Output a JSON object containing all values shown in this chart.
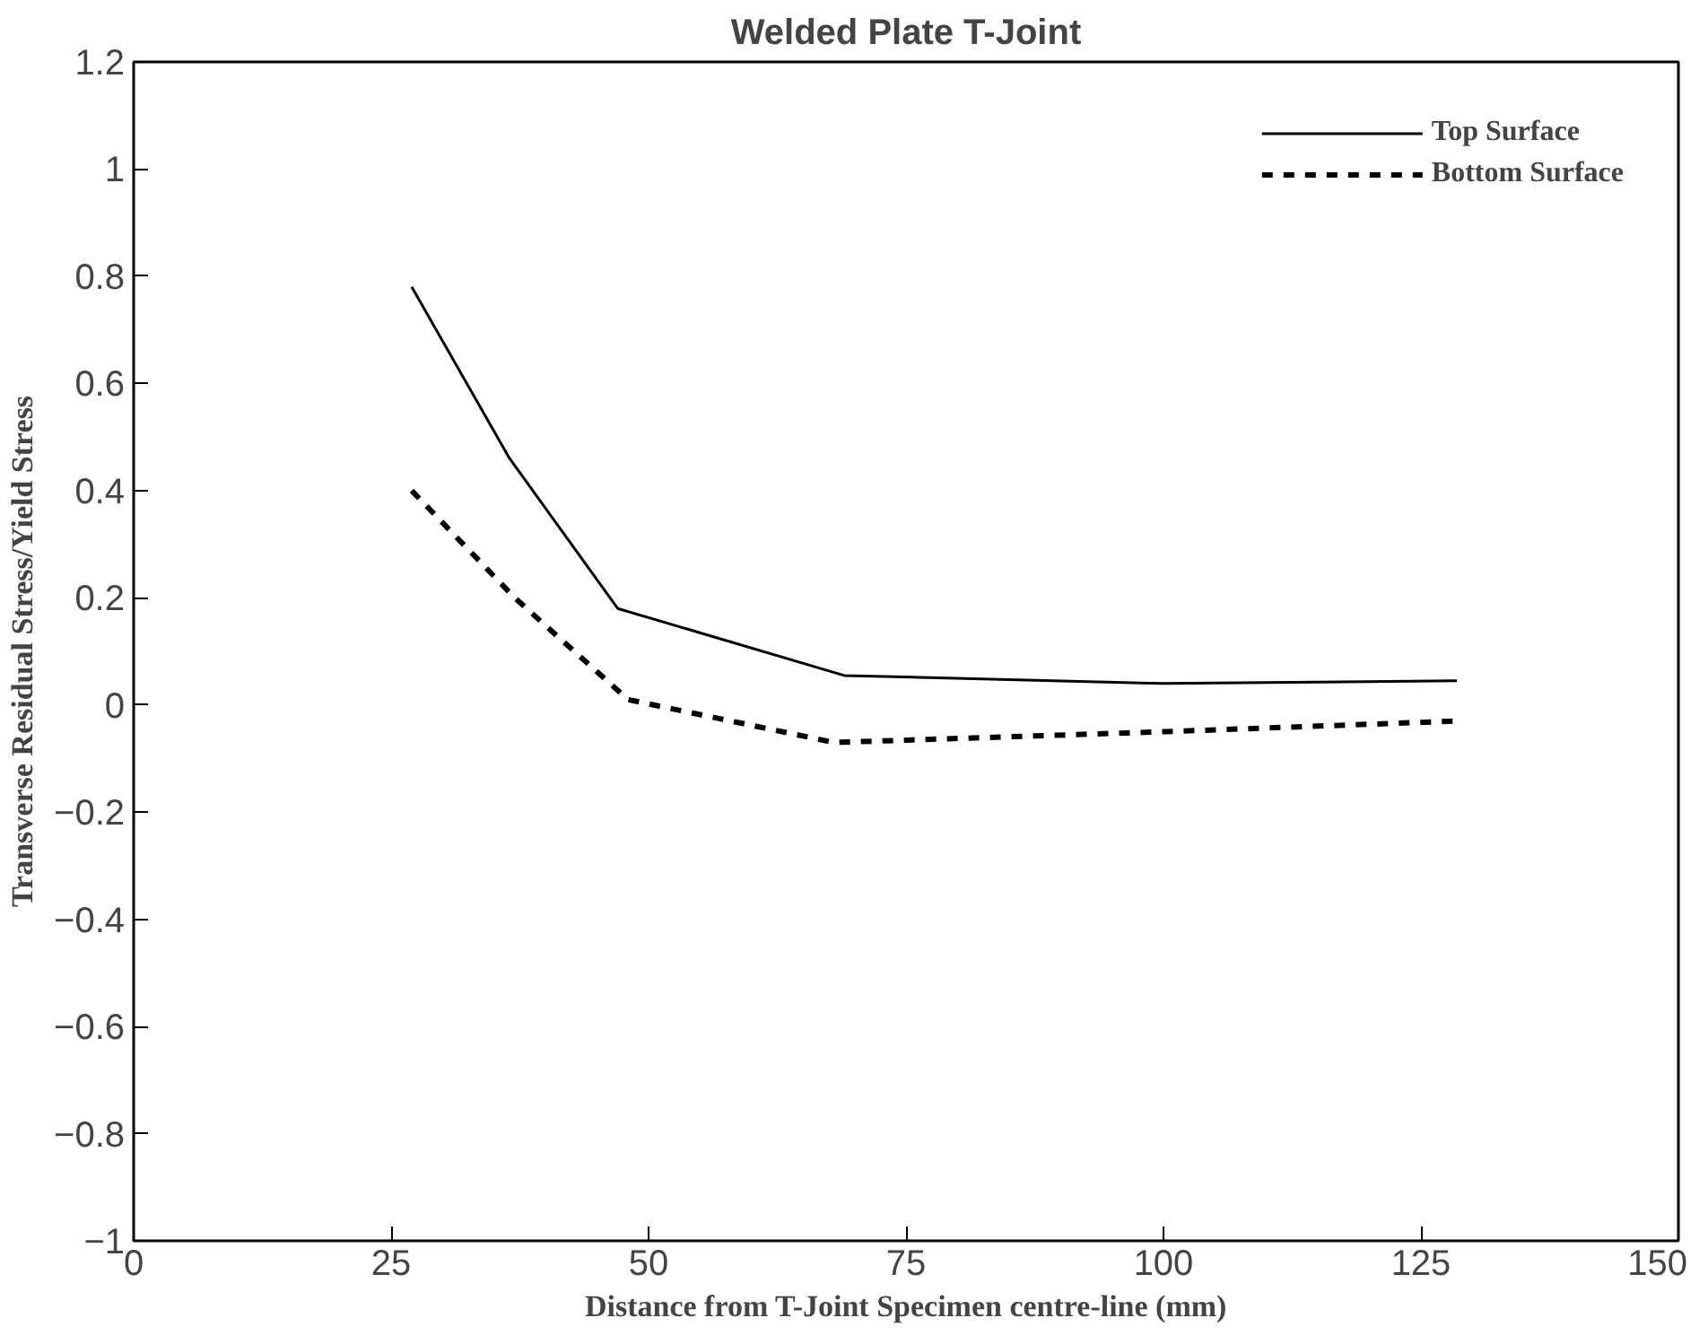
{
  "chart_data": {
    "type": "line",
    "title": "Welded Plate T-Joint",
    "xlabel": "Distance from T-Joint Specimen centre-line (mm)",
    "ylabel": "Transverse Residual Stress/Yield Stress",
    "xlim": [
      0,
      150
    ],
    "xticks": [
      0,
      25,
      50,
      75,
      100,
      125,
      150
    ],
    "ylim": [
      -1,
      1.2
    ],
    "yticks": [
      -1,
      -0.8,
      -0.6,
      -0.4,
      -0.2,
      0,
      0.2,
      0.4,
      0.6,
      0.8,
      1,
      1.2
    ],
    "grid": false,
    "legend": "top right",
    "series": [
      {
        "name": "Top Surface",
        "color": "#000000",
        "line_style": "solid",
        "x": [
          27,
          36.5,
          47,
          69,
          100,
          128.5
        ],
        "values": [
          0.78,
          0.46,
          0.18,
          0.055,
          0.04,
          0.045
        ]
      },
      {
        "name": "Bottom Surface",
        "color": "#000000",
        "line_style": "dashed",
        "x": [
          27,
          37,
          48,
          68,
          100,
          128.5
        ],
        "values": [
          0.4,
          0.2,
          0.01,
          -0.07,
          -0.05,
          -0.03
        ]
      }
    ]
  }
}
